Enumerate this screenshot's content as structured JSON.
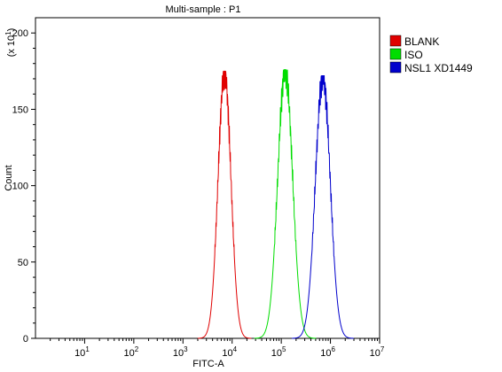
{
  "chart_data": {
    "type": "line",
    "title": "Multi-sample : P1",
    "xlabel": "FITC-A",
    "ylabel": "Count",
    "y_multiplier_label": "(x 10",
    "y_multiplier_exp": "1",
    "y_multiplier_close": ")",
    "x_scale": "log",
    "xlim": [
      1,
      10000000
    ],
    "ylim": [
      0,
      210
    ],
    "yticks": [
      0,
      50,
      100,
      150,
      200
    ],
    "ytick_labels": [
      "0",
      "50",
      "100",
      "150",
      "200"
    ],
    "xticks": [
      10,
      100,
      1000,
      10000,
      100000,
      1000000,
      10000000
    ],
    "xtick_base": "10",
    "xtick_exps": [
      "1",
      "2",
      "3",
      "4",
      "5",
      "6",
      "7"
    ],
    "grid": false,
    "legend_position": "right",
    "series": [
      {
        "name": "BLANK",
        "color": "#e00000",
        "peak_x": 7000,
        "peak_y": 175,
        "width_decades": 0.13
      },
      {
        "name": "ISO",
        "color": "#00dd00",
        "peak_x": 120000,
        "peak_y": 176,
        "width_decades": 0.15
      },
      {
        "name": "NSL1 XD1449",
        "color": "#0000cc",
        "peak_x": 700000,
        "peak_y": 172,
        "width_decades": 0.15
      }
    ]
  }
}
